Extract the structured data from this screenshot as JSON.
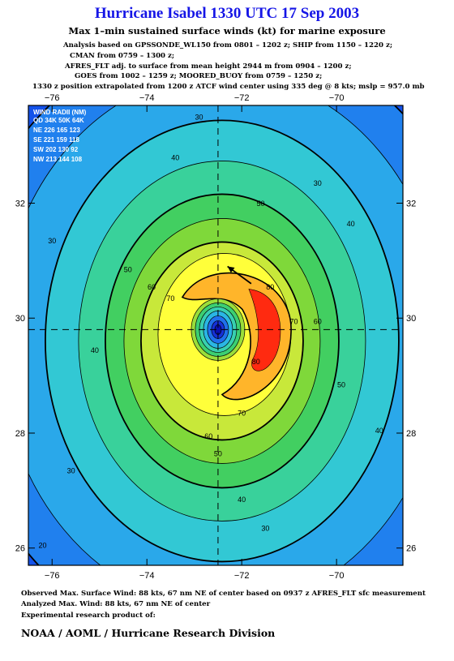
{
  "header": {
    "title": "Hurricane Isabel 1330 UTC 17 Sep 2003",
    "subtitle": "Max 1–min sustained surface winds (kt) for marine exposure",
    "analysis_lines": [
      "Analysis based on  GPSSONDE_WL150 from 0801 – 1202 z;  SHIP from 1150 – 1220 z;",
      "CMAN from 0759 – 1300 z;",
      "AFRES_FLT adj. to surface from mean height 2944 m from 0904 – 1200 z;",
      "GOES from 1002 – 1259 z;  MOORED_BUOY from 0759 – 1250 z;",
      "1330 z position extrapolated from 1200 z ATCF wind center using 335 deg @ 8 kts; mslp = 957.0 mb"
    ]
  },
  "footer": {
    "observed": "Observed Max. Surface Wind: 88 kts, 67 nm NE of center based on 0937 z AFRES_FLT sfc measurement",
    "analyzed": "Analyzed Max. Wind: 88 kts, 67 nm NE of center",
    "experimental": "Experimental research product of:",
    "org": "NOAA / AOML / Hurricane Research Division"
  },
  "chart_data": {
    "type": "heatmap",
    "title": "Hurricane Isabel 1330 UTC 17 Sep 2003",
    "xlabel": "",
    "ylabel": "",
    "xlim": [
      -76.5,
      -68.6
    ],
    "ylim": [
      25.7,
      33.7
    ],
    "x_ticks": [
      -76,
      -74,
      -72,
      -70
    ],
    "y_ticks": [
      26,
      28,
      30,
      32
    ],
    "x_tick_labels": [
      "−76",
      "−74",
      "−72",
      "−70"
    ],
    "y_tick_labels": [
      "26",
      "28",
      "30",
      "32"
    ],
    "center": {
      "lon": -72.5,
      "lat": 29.8
    },
    "max_wind": {
      "value": 88,
      "unit": "kt",
      "lon": -71.4,
      "lat": 30.6
    },
    "motion_arrow": {
      "from": [
        -71.8,
        30.6
      ],
      "to": [
        -72.3,
        30.9
      ]
    },
    "grid": false,
    "contour_levels": [
      10,
      20,
      30,
      40,
      50,
      60,
      70,
      80
    ],
    "contour_labels": [
      {
        "text": "30",
        "lon": -72.9,
        "lat": 33.45
      },
      {
        "text": "40",
        "lon": -73.4,
        "lat": 32.75
      },
      {
        "text": "30",
        "lon": -70.4,
        "lat": 32.3
      },
      {
        "text": "50",
        "lon": -71.6,
        "lat": 31.95
      },
      {
        "text": "40",
        "lon": -69.7,
        "lat": 31.6
      },
      {
        "text": "30",
        "lon": -76.0,
        "lat": 31.3
      },
      {
        "text": "50",
        "lon": -74.4,
        "lat": 30.8
      },
      {
        "text": "60",
        "lon": -73.9,
        "lat": 30.5
      },
      {
        "text": "70",
        "lon": -73.5,
        "lat": 30.3
      },
      {
        "text": "80",
        "lon": -71.4,
        "lat": 30.5
      },
      {
        "text": "70",
        "lon": -70.9,
        "lat": 29.9
      },
      {
        "text": "60",
        "lon": -70.4,
        "lat": 29.9
      },
      {
        "text": "40",
        "lon": -75.1,
        "lat": 29.4
      },
      {
        "text": "80",
        "lon": -71.7,
        "lat": 29.2
      },
      {
        "text": "50",
        "lon": -69.9,
        "lat": 28.8
      },
      {
        "text": "70",
        "lon": -72.0,
        "lat": 28.3
      },
      {
        "text": "40",
        "lon": -69.1,
        "lat": 28.0
      },
      {
        "text": "60",
        "lon": -72.7,
        "lat": 27.9
      },
      {
        "text": "30",
        "lon": -75.6,
        "lat": 27.3
      },
      {
        "text": "50",
        "lon": -72.5,
        "lat": 27.6
      },
      {
        "text": "40",
        "lon": -72.0,
        "lat": 26.8
      },
      {
        "text": "30",
        "lon": -71.5,
        "lat": 26.3
      },
      {
        "text": "20",
        "lon": -76.2,
        "lat": 26.0
      }
    ],
    "wind_radii": {
      "title": "WIND RADII (NM)",
      "header": "QD 34K 50K 64K",
      "rows": [
        {
          "quadrant": "NE",
          "r34": 226,
          "r50": 165,
          "r64": 123
        },
        {
          "quadrant": "SE",
          "r34": 221,
          "r50": 159,
          "r64": 118
        },
        {
          "quadrant": "SW",
          "r34": 202,
          "r50": 130,
          "r64": 92
        },
        {
          "quadrant": "NW",
          "r34": 213,
          "r50": 144,
          "r64": 108
        }
      ]
    }
  },
  "colors": {
    "title": "#1515e6",
    "scale": [
      "#0a16d8",
      "#1452ea",
      "#2080ee",
      "#2aa8ea",
      "#32c8d4",
      "#39d19b",
      "#42cf61",
      "#7fd83a",
      "#c8e83a",
      "#ffff3a",
      "#ffb52a",
      "#ff6a1a",
      "#ff2a10",
      "#e00000",
      "#c00020",
      "#9a00a0",
      "#3a20c8",
      "#2060e8",
      "#20b0e0",
      "#30e0b0"
    ]
  }
}
